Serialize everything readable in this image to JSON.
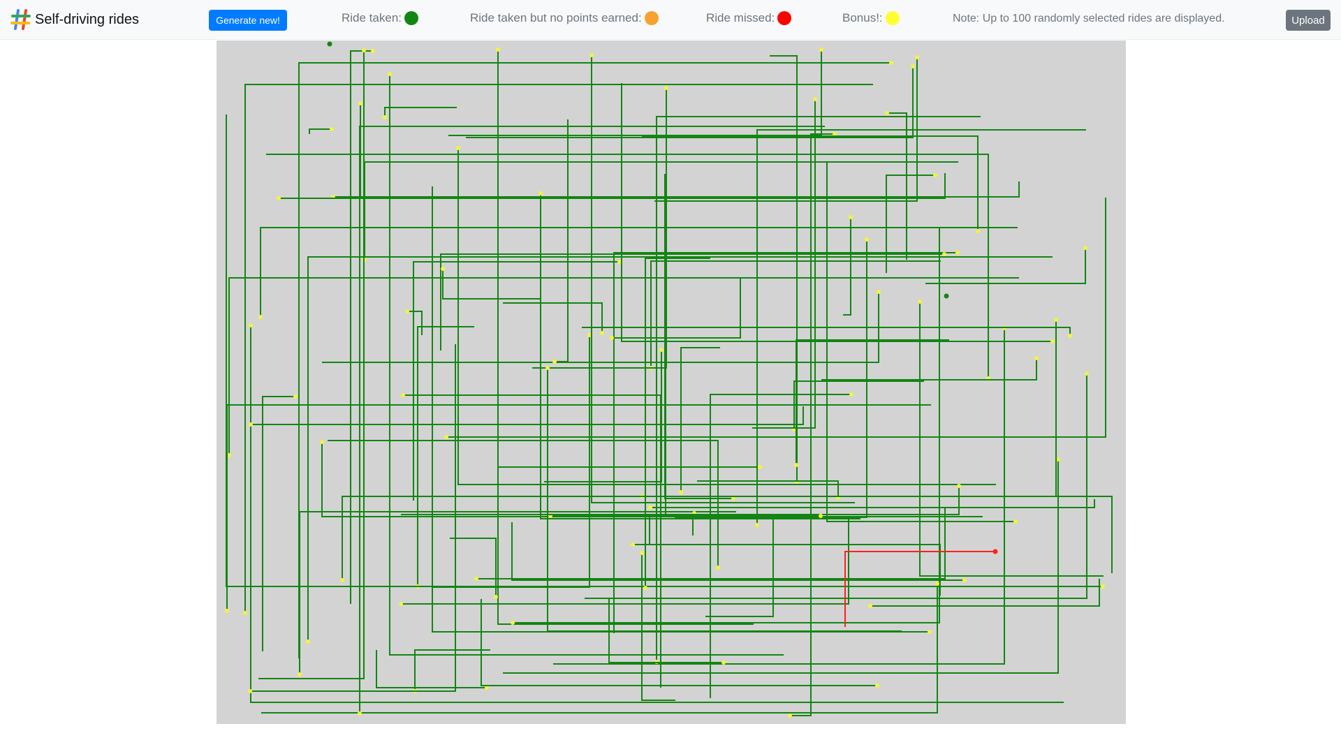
{
  "app": {
    "title": "Self-driving rides"
  },
  "toolbar": {
    "generate_label": "Generate new!",
    "upload_label": "Upload"
  },
  "legend": [
    {
      "label": "Ride taken:",
      "color": "#138513"
    },
    {
      "label": "Ride taken but no points earned:",
      "color": "#f7a130"
    },
    {
      "label": "Ride missed:",
      "color": "#ff0000"
    },
    {
      "label": "Bonus!:",
      "color": "#ffff33"
    }
  ],
  "note": "Note: Up to 100 randomly selected rides are displayed.",
  "colors": {
    "ride_taken": "#138513",
    "ride_missed": "#ff2020",
    "bonus": "#f4f43a",
    "map_background": "#d3d3d3",
    "primary": "#007bff",
    "secondary": "#6c757d"
  }
}
